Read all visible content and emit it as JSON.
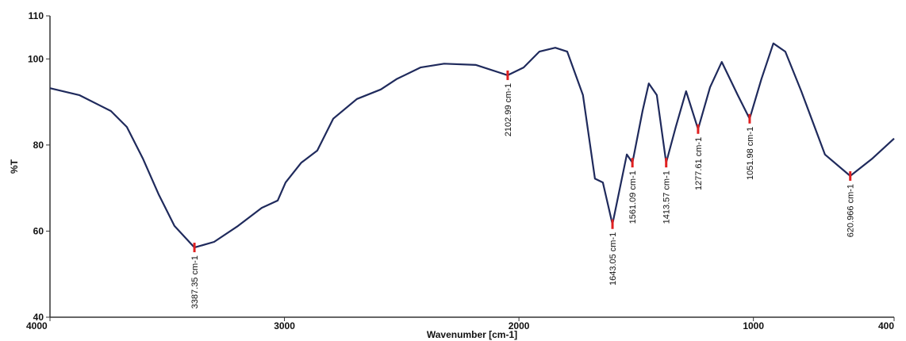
{
  "chart_data": {
    "type": "line",
    "x_label": "Wavenumber [cm-1]",
    "y_label": "%T",
    "x": [
      4000,
      3875,
      3740,
      3672,
      3604,
      3537,
      3469,
      3384,
      3300,
      3198,
      3097,
      3029,
      2995,
      2928,
      2860,
      2792,
      2691,
      2589,
      2522,
      2420,
      2319,
      2183,
      2048,
      1980,
      1913,
      1845,
      1794,
      1727,
      1676,
      1642,
      1601,
      1540,
      1516,
      1473,
      1446,
      1412,
      1372,
      1331,
      1287,
      1236,
      1185,
      1135,
      1067,
      1016,
      966,
      915,
      864,
      796,
      695,
      587,
      492,
      400
    ],
    "values": [
      93.2,
      91.6,
      87.9,
      84.2,
      76.9,
      68.6,
      61.2,
      56.2,
      57.5,
      61.2,
      65.4,
      67.1,
      71.3,
      75.9,
      78.7,
      86.1,
      90.7,
      92.9,
      95.3,
      98.0,
      98.9,
      98.6,
      96.2,
      98.0,
      101.7,
      102.6,
      101.7,
      91.6,
      72.2,
      71.3,
      61.6,
      77.8,
      75.9,
      87.9,
      94.3,
      91.6,
      75.9,
      84.2,
      92.5,
      83.7,
      93.4,
      99.3,
      91.6,
      86.1,
      95.3,
      103.6,
      101.7,
      92.5,
      77.8,
      72.8,
      76.9,
      81.5
    ],
    "color": "#1f2a5c",
    "xlim": [
      4000,
      400
    ],
    "xticks": [
      4000,
      3000,
      2000,
      1000,
      400
    ],
    "ylim": [
      40,
      110
    ],
    "yticks": [
      40,
      60,
      80,
      100,
      110
    ],
    "annotations": [
      {
        "x": 3384,
        "y": 56.2,
        "label": "3387.35 cm-1"
      },
      {
        "x": 2048,
        "y": 96.2,
        "label": "2102.99 cm-1"
      },
      {
        "x": 1601,
        "y": 61.6,
        "label": "1643.05 cm-1"
      },
      {
        "x": 1516,
        "y": 75.9,
        "label": "1561.09 cm-1"
      },
      {
        "x": 1372,
        "y": 75.9,
        "label": "1413.57 cm-1"
      },
      {
        "x": 1236,
        "y": 83.7,
        "label": "1277.61 cm-1"
      },
      {
        "x": 1016,
        "y": 86.1,
        "label": "1051.98 cm-1"
      },
      {
        "x": 587,
        "y": 72.8,
        "label": "620.966 cm-1"
      }
    ],
    "annotation_color": "#e02020"
  }
}
